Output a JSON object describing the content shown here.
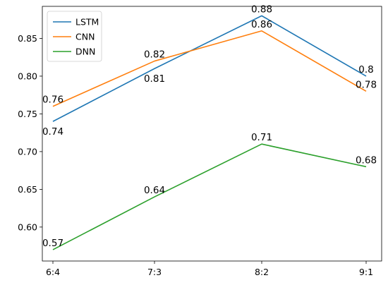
{
  "chart_data": {
    "type": "line",
    "categories": [
      "6:4",
      "7:3",
      "8:2",
      "9:1"
    ],
    "series": [
      {
        "name": "LSTM",
        "values": [
          0.74,
          0.81,
          0.88,
          0.8
        ],
        "color": "#1f77b4"
      },
      {
        "name": "CNN",
        "values": [
          0.76,
          0.82,
          0.86,
          0.78
        ],
        "color": "#ff7f0e"
      },
      {
        "name": "DNN",
        "values": [
          0.57,
          0.64,
          0.71,
          0.68
        ],
        "color": "#2ca02c"
      }
    ],
    "data_labels": [
      {
        "series": "LSTM",
        "category": "6:4",
        "text": "0.74",
        "position": "below"
      },
      {
        "series": "LSTM",
        "category": "7:3",
        "text": "0.81",
        "position": "below"
      },
      {
        "series": "LSTM",
        "category": "8:2",
        "text": "0.88",
        "position": "above"
      },
      {
        "series": "LSTM",
        "category": "9:1",
        "text": "0.8",
        "position": "above"
      },
      {
        "series": "CNN",
        "category": "6:4",
        "text": "0.76",
        "position": "above"
      },
      {
        "series": "CNN",
        "category": "7:3",
        "text": "0.82",
        "position": "above"
      },
      {
        "series": "CNN",
        "category": "8:2",
        "text": "0.86",
        "position": "above"
      },
      {
        "series": "CNN",
        "category": "9:1",
        "text": "0.78",
        "position": "above"
      },
      {
        "series": "DNN",
        "category": "6:4",
        "text": "0.57",
        "position": "above"
      },
      {
        "series": "DNN",
        "category": "7:3",
        "text": "0.64",
        "position": "above"
      },
      {
        "series": "DNN",
        "category": "8:2",
        "text": "0.71",
        "position": "above"
      },
      {
        "series": "DNN",
        "category": "9:1",
        "text": "0.68",
        "position": "above"
      }
    ],
    "y_ticks": [
      "0.60",
      "0.65",
      "0.70",
      "0.75",
      "0.80",
      "0.85"
    ],
    "ylim": [
      0.555,
      0.8925
    ],
    "title": "",
    "xlabel": "",
    "ylabel": "",
    "grid": false,
    "legend": "top-left"
  }
}
